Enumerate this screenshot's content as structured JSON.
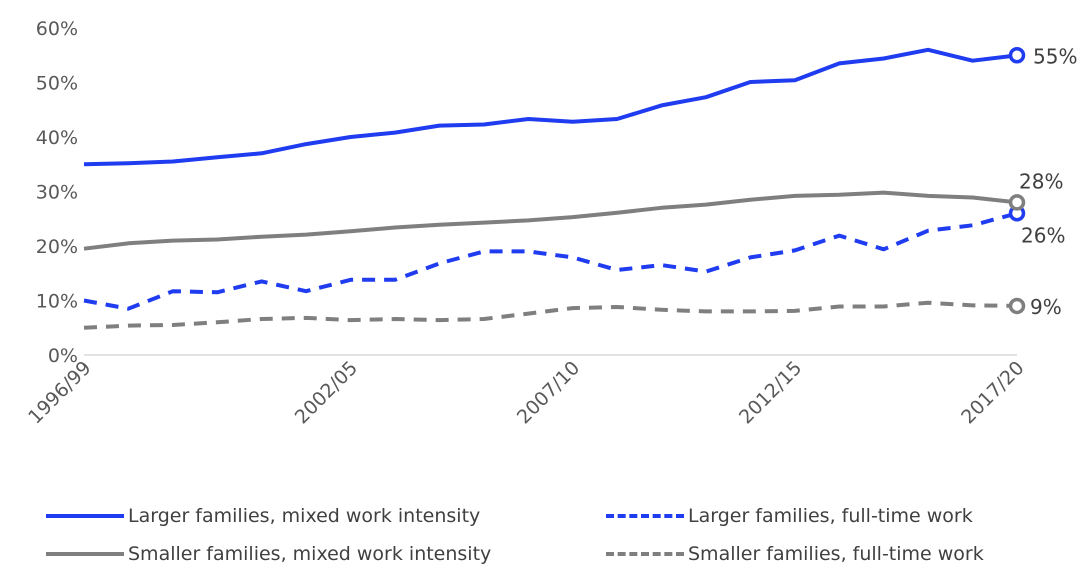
{
  "chart_data": {
    "type": "line",
    "title": "",
    "xlabel": "",
    "ylabel": "",
    "x": [
      "1996/99",
      "1997/00",
      "1998/01",
      "1999/02",
      "2000/03",
      "2001/04",
      "2002/05",
      "2003/06",
      "2004/07",
      "2005/08",
      "2006/09",
      "2007/10",
      "2008/11",
      "2009/12",
      "2010/13",
      "2011/14",
      "2012/15",
      "2013/16",
      "2014/17",
      "2015/18",
      "2016/19",
      "2017/20"
    ],
    "x_tick_labels": [
      "1996/99",
      "2002/05",
      "2007/10",
      "2012/15",
      "2017/20"
    ],
    "y_tick_labels": [
      "0%",
      "10%",
      "20%",
      "30%",
      "40%",
      "50%",
      "60%"
    ],
    "ylim": [
      0,
      60
    ],
    "y_unit": "%",
    "grid": false,
    "legend_position": "bottom",
    "series": [
      {
        "name": "Larger families, mixed work intensity",
        "color": "#1f3cf0",
        "dash": "solid",
        "values": [
          35,
          35.2,
          35.5,
          36.3,
          37,
          38.7,
          40,
          40.8,
          42.1,
          42.3,
          43.3,
          42.8,
          43.3,
          45.8,
          47.3,
          50.1,
          50.4,
          53.5,
          54.4,
          56,
          54,
          55
        ],
        "end_label": "55%"
      },
      {
        "name": "Larger families, full-time work",
        "color": "#1f3cf0",
        "dash": "dashed",
        "values": [
          10,
          8.5,
          11.7,
          11.5,
          13.5,
          11.7,
          13.8,
          13.8,
          16.8,
          19,
          19,
          17.9,
          15.6,
          16.5,
          15.3,
          17.9,
          19.2,
          21.9,
          19.4,
          22.8,
          23.8,
          26
        ],
        "end_label": "26%"
      },
      {
        "name": "Smaller families, mixed work intensity",
        "color": "#7f7f7f",
        "dash": "solid",
        "values": [
          19.5,
          20.5,
          21,
          21.2,
          21.7,
          22.1,
          22.7,
          23.4,
          23.9,
          24.3,
          24.7,
          25.3,
          26.1,
          27,
          27.6,
          28.5,
          29.2,
          29.4,
          29.8,
          29.2,
          28.9,
          28
        ],
        "end_label": "28%"
      },
      {
        "name": "Smaller families, full-time work",
        "color": "#7f7f7f",
        "dash": "dashed",
        "values": [
          5,
          5.4,
          5.5,
          6,
          6.6,
          6.8,
          6.4,
          6.6,
          6.4,
          6.6,
          7.6,
          8.6,
          8.8,
          8.3,
          8,
          8,
          8.1,
          8.9,
          8.9,
          9.6,
          9.1,
          9
        ],
        "end_label": "9%"
      }
    ]
  }
}
